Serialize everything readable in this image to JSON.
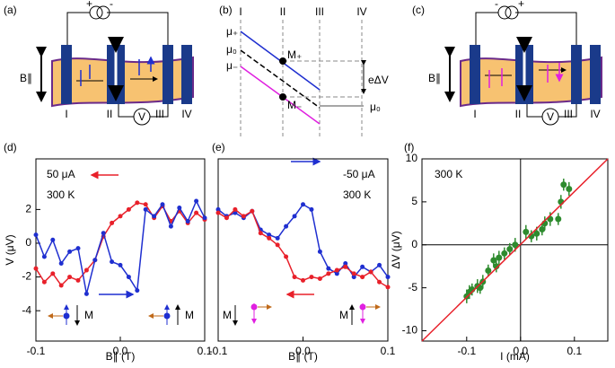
{
  "diagrams": {
    "a": {
      "label": "(a)",
      "field": "B∥",
      "plus": "+",
      "minus": "-",
      "electrodes": [
        "I",
        "II",
        "III",
        "IV"
      ],
      "meter": "V"
    },
    "b": {
      "label": "(b)",
      "columns": [
        "I",
        "II",
        "III",
        "IV"
      ],
      "mu_plus": "μ₊",
      "mu_zero": "μ₀",
      "mu_minus": "μ₋",
      "m_plus": "M₊",
      "m_minus": "M₋",
      "delta": "eΔV",
      "mu_out": "μ₀"
    },
    "c": {
      "label": "(c)",
      "field": "B∥",
      "plus": "+",
      "minus": "-",
      "electrodes": [
        "I",
        "II",
        "III",
        "IV"
      ],
      "meter": "V"
    }
  },
  "chart_data": [
    {
      "type": "line",
      "panel": "(d)",
      "x_label": "B∥ (T)",
      "y_label": "V (μV)",
      "annotations": [
        "50 μA",
        "300 K",
        "M",
        "M"
      ],
      "xlim": [
        -0.1,
        0.1
      ],
      "ylim": [
        -5.8,
        5
      ],
      "xticks": [
        -0.1,
        {
          "value": 0,
          "label": "0.0"
        },
        0.1
      ],
      "yticks": [
        -4,
        -2,
        0,
        2
      ],
      "series": [
        {
          "color": "#e8202a",
          "x": [
            -0.1,
            -0.09,
            -0.08,
            -0.07,
            -0.06,
            -0.05,
            -0.04,
            -0.03,
            -0.02,
            -0.01,
            0,
            0.01,
            0.02,
            0.03,
            0.04,
            0.05,
            0.06,
            0.07,
            0.08,
            0.09,
            0.1
          ],
          "values": [
            -1.5,
            -2.3,
            -1.8,
            -2.5,
            -2.0,
            -2.2,
            -1.6,
            -1.0,
            0.4,
            1.2,
            1.6,
            2.0,
            2.4,
            2.3,
            1.5,
            2.2,
            1.3,
            1.9,
            1.2,
            1.8,
            1.4
          ]
        },
        {
          "color": "#1f2fd0",
          "x": [
            -0.1,
            -0.09,
            -0.08,
            -0.07,
            -0.06,
            -0.05,
            -0.04,
            -0.03,
            -0.02,
            -0.01,
            0,
            0.01,
            0.02,
            0.03,
            0.04,
            0.05,
            0.06,
            0.07,
            0.08,
            0.09,
            0.1
          ],
          "values": [
            0.5,
            -0.8,
            0.2,
            -1.2,
            -0.5,
            -0.3,
            -3.0,
            -1.0,
            0.6,
            -1.1,
            -1.3,
            -2.0,
            -2.8,
            2.0,
            1.6,
            2.3,
            1.0,
            2.1,
            1.3,
            2.5,
            1.5
          ]
        }
      ]
    },
    {
      "type": "line",
      "panel": "(e)",
      "x_label": "B∥ (T)",
      "annotations": [
        "-50 μA",
        "300 K",
        "M",
        "M"
      ],
      "xlim": [
        -0.1,
        0.1
      ],
      "ylim": [
        -5.8,
        5
      ],
      "xticks": [
        -0.1,
        {
          "value": 0,
          "label": "0.0"
        },
        0.1
      ],
      "series": [
        {
          "color": "#1f2fd0",
          "x": [
            -0.1,
            -0.09,
            -0.08,
            -0.07,
            -0.06,
            -0.05,
            -0.04,
            -0.03,
            -0.02,
            -0.01,
            0,
            0.01,
            0.02,
            0.03,
            0.04,
            0.05,
            0.06,
            0.07,
            0.08,
            0.09,
            0.1
          ],
          "values": [
            2.0,
            1.6,
            1.8,
            1.5,
            1.9,
            0.8,
            0.5,
            0.3,
            1.0,
            1.6,
            2.3,
            2.0,
            -0.5,
            -1.5,
            -1.8,
            -1.2,
            -2.0,
            -1.4,
            -1.7,
            -1.3,
            -2.0
          ]
        },
        {
          "color": "#e8202a",
          "x": [
            -0.1,
            -0.09,
            -0.08,
            -0.07,
            -0.06,
            -0.05,
            -0.04,
            -0.03,
            -0.02,
            -0.01,
            0,
            0.01,
            0.02,
            0.03,
            0.04,
            0.05,
            0.06,
            0.07,
            0.08,
            0.09,
            0.1
          ],
          "values": [
            1.8,
            1.5,
            2.0,
            1.6,
            1.9,
            0.6,
            0.3,
            -0.1,
            -0.8,
            -2.0,
            -2.2,
            -2.0,
            -2.1,
            -1.8,
            -1.6,
            -1.4,
            -1.8,
            -2.0,
            -1.7,
            -2.3,
            -2.6
          ]
        }
      ]
    },
    {
      "type": "scatter",
      "panel": "(f)",
      "x_label": "I (mA)",
      "y_label": "ΔV (μV)",
      "annotations": [
        "300 K"
      ],
      "xlim": [
        -0.183,
        0.162
      ],
      "ylim": [
        -11.2,
        10
      ],
      "xticks": [
        -0.1,
        {
          "value": 0,
          "label": "0.0"
        },
        0.1
      ],
      "yticks": [
        -10,
        -5,
        0,
        5,
        10
      ],
      "series": [
        {
          "color": "#2e8b2e",
          "x": [
            -0.1,
            -0.095,
            -0.09,
            -0.08,
            -0.075,
            -0.07,
            -0.06,
            -0.05,
            -0.045,
            -0.04,
            -0.03,
            -0.02,
            -0.01,
            0.01,
            0.02,
            0.03,
            0.04,
            0.045,
            0.055,
            0.07,
            0.075,
            0.08,
            0.09
          ],
          "values": [
            -6,
            -5.5,
            -5.2,
            -4.8,
            -5,
            -4.3,
            -3,
            -1.8,
            -2.5,
            -1.5,
            -1,
            -0.5,
            0,
            1.5,
            1,
            1.3,
            1.8,
            2.5,
            3,
            3,
            5,
            7,
            6.5
          ],
          "errors": [
            0.8,
            0.8,
            0.7,
            0.8,
            0.7,
            0.8,
            0.7,
            0.8,
            0.7,
            0.8,
            0.7,
            0.7,
            0.8,
            0.8,
            0.7,
            0.8,
            0.7,
            0.8,
            0.8,
            0.7,
            0.8,
            0.7,
            0.8
          ]
        },
        {
          "color": "#e8202a",
          "type": "line",
          "x": [
            -0.183,
            0.162
          ],
          "values": [
            -11.2,
            10
          ]
        }
      ]
    }
  ]
}
